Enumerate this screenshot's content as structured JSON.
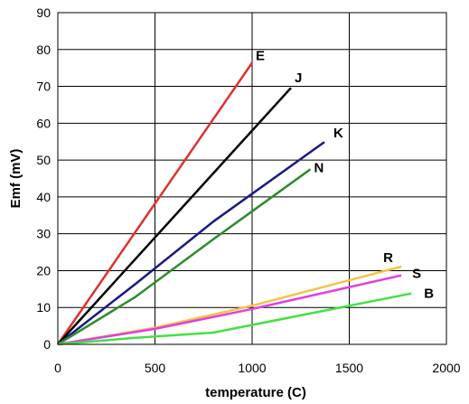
{
  "chart_data": {
    "type": "line",
    "title": "",
    "xlabel": "temperature (C)",
    "ylabel": "Emf (mV)",
    "xlim": [
      0,
      2000
    ],
    "ylim": [
      0,
      90
    ],
    "xticks": [
      0,
      500,
      1000,
      1500,
      2000
    ],
    "yticks": [
      0,
      10,
      20,
      30,
      40,
      50,
      60,
      70,
      80,
      90
    ],
    "grid": true,
    "legend": "none",
    "series": [
      {
        "name": "E",
        "color": "#e03030",
        "points": [
          [
            0,
            0
          ],
          [
            1000,
            76.4
          ]
        ]
      },
      {
        "name": "J",
        "color": "#000000",
        "points": [
          [
            0,
            0
          ],
          [
            1200,
            69.6
          ]
        ]
      },
      {
        "name": "K",
        "color": "#1a1a80",
        "points": [
          [
            0,
            0
          ],
          [
            400,
            16.4
          ],
          [
            800,
            33.3
          ],
          [
            1372,
            54.9
          ]
        ]
      },
      {
        "name": "N",
        "color": "#2e8b2e",
        "points": [
          [
            0,
            0
          ],
          [
            400,
            12.9
          ],
          [
            800,
            28.5
          ],
          [
            1300,
            47.5
          ]
        ]
      },
      {
        "name": "R",
        "color": "#f5c242",
        "points": [
          [
            0,
            0
          ],
          [
            500,
            4.5
          ],
          [
            1000,
            10.5
          ],
          [
            1768,
            21.1
          ]
        ]
      },
      {
        "name": "S",
        "color": "#e040e0",
        "points": [
          [
            0,
            0
          ],
          [
            500,
            4.2
          ],
          [
            1000,
            9.6
          ],
          [
            1768,
            18.7
          ]
        ]
      },
      {
        "name": "B",
        "color": "#44e044",
        "points": [
          [
            0,
            0
          ],
          [
            400,
            1.8
          ],
          [
            800,
            3.2
          ],
          [
            1820,
            13.8
          ]
        ]
      }
    ]
  }
}
